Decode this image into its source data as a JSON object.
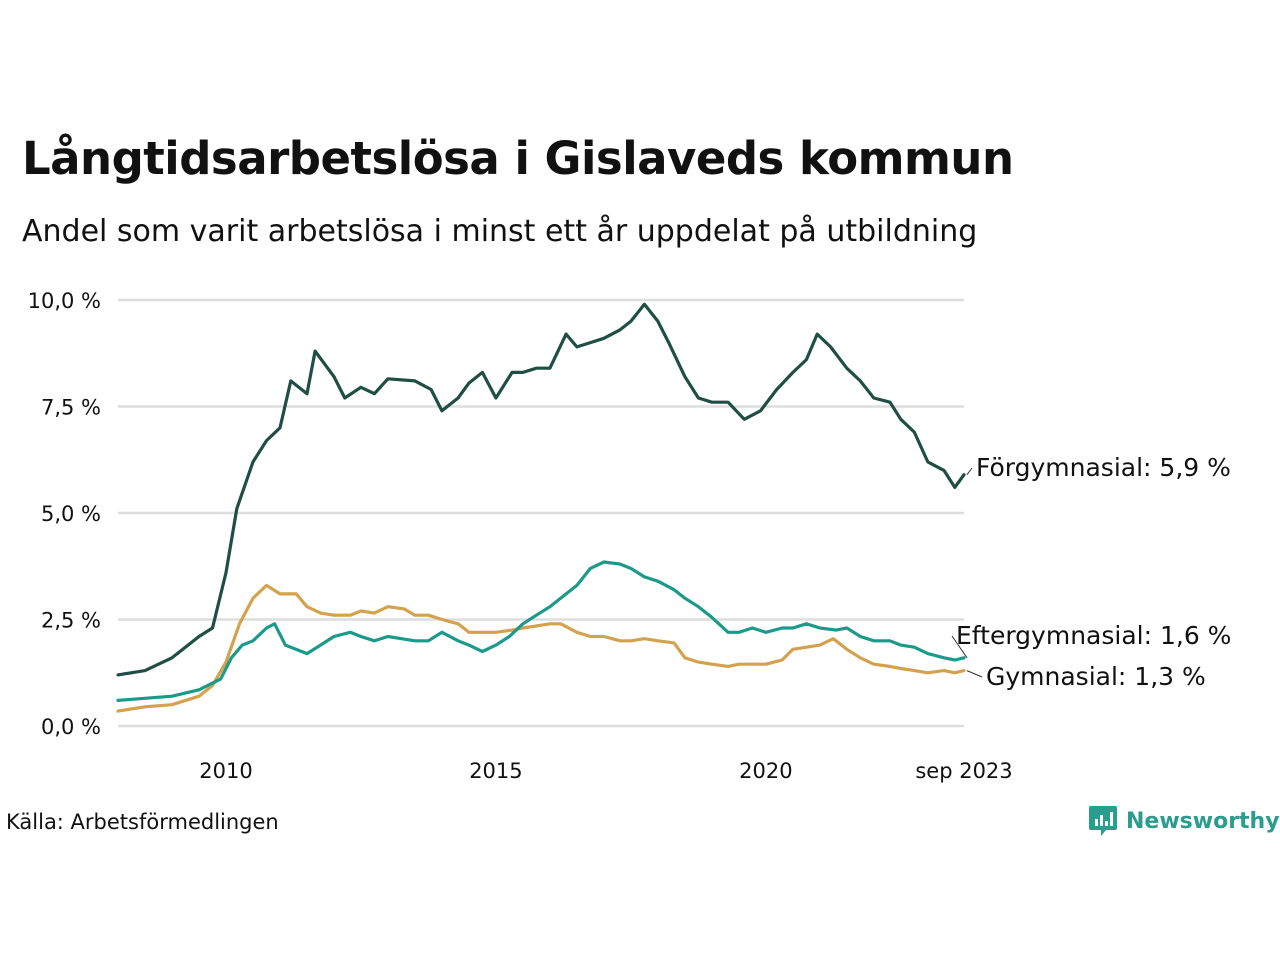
{
  "title": "Långtidsarbetslösa i Gislaveds kommun",
  "subtitle": "Andel som varit arbetslösa i minst ett år uppdelat på utbildning",
  "source": "Källa: Arbetsförmedlingen",
  "brand": "Newsworthy",
  "colors": {
    "forgymnasial": "#1f4e45",
    "eftergymnasial": "#1b9a8a",
    "gymnasial": "#d4a24c",
    "grid": "#dddddd",
    "brand": "#2a9d8f"
  },
  "chart_data": {
    "type": "line",
    "xlim": [
      2008.0,
      2023.67
    ],
    "ylim": [
      0,
      10
    ],
    "y_ticks": [
      {
        "value": 0,
        "label": "0,0 %"
      },
      {
        "value": 2.5,
        "label": "2,5 %"
      },
      {
        "value": 5,
        "label": "5,0 %"
      },
      {
        "value": 7.5,
        "label": "7,5 %"
      },
      {
        "value": 10,
        "label": "10,0 %"
      }
    ],
    "x_ticks": [
      {
        "value": 2010,
        "label": "2010"
      },
      {
        "value": 2015,
        "label": "2015"
      },
      {
        "value": 2020,
        "label": "2020"
      },
      {
        "value": 2023.67,
        "label": "sep 2023"
      }
    ],
    "series": [
      {
        "key": "forgymnasial",
        "name": "Förgymnasial",
        "end_label": "Förgymnasial: 5,9 %",
        "points": [
          [
            2008.0,
            1.2
          ],
          [
            2008.5,
            1.3
          ],
          [
            2009.0,
            1.6
          ],
          [
            2009.5,
            2.1
          ],
          [
            2009.75,
            2.3
          ],
          [
            2010.0,
            3.6
          ],
          [
            2010.2,
            5.1
          ],
          [
            2010.5,
            6.2
          ],
          [
            2010.75,
            6.7
          ],
          [
            2011.0,
            7.0
          ],
          [
            2011.2,
            8.1
          ],
          [
            2011.5,
            7.8
          ],
          [
            2011.65,
            8.8
          ],
          [
            2012.0,
            8.2
          ],
          [
            2012.2,
            7.7
          ],
          [
            2012.5,
            7.95
          ],
          [
            2012.75,
            7.8
          ],
          [
            2013.0,
            8.15
          ],
          [
            2013.5,
            8.1
          ],
          [
            2013.8,
            7.9
          ],
          [
            2014.0,
            7.4
          ],
          [
            2014.3,
            7.7
          ],
          [
            2014.5,
            8.05
          ],
          [
            2014.75,
            8.3
          ],
          [
            2015.0,
            7.7
          ],
          [
            2015.3,
            8.3
          ],
          [
            2015.5,
            8.3
          ],
          [
            2015.75,
            8.4
          ],
          [
            2016.0,
            8.4
          ],
          [
            2016.3,
            9.2
          ],
          [
            2016.5,
            8.9
          ],
          [
            2016.75,
            9.0
          ],
          [
            2017.0,
            9.1
          ],
          [
            2017.3,
            9.3
          ],
          [
            2017.5,
            9.5
          ],
          [
            2017.75,
            9.9
          ],
          [
            2018.0,
            9.5
          ],
          [
            2018.2,
            9.0
          ],
          [
            2018.5,
            8.2
          ],
          [
            2018.75,
            7.7
          ],
          [
            2019.0,
            7.6
          ],
          [
            2019.3,
            7.6
          ],
          [
            2019.6,
            7.2
          ],
          [
            2019.9,
            7.4
          ],
          [
            2020.2,
            7.9
          ],
          [
            2020.5,
            8.3
          ],
          [
            2020.75,
            8.6
          ],
          [
            2020.95,
            9.2
          ],
          [
            2021.2,
            8.9
          ],
          [
            2021.5,
            8.4
          ],
          [
            2021.75,
            8.1
          ],
          [
            2022.0,
            7.7
          ],
          [
            2022.3,
            7.6
          ],
          [
            2022.5,
            7.2
          ],
          [
            2022.75,
            6.9
          ],
          [
            2023.0,
            6.2
          ],
          [
            2023.3,
            6.0
          ],
          [
            2023.5,
            5.6
          ],
          [
            2023.67,
            5.9
          ]
        ]
      },
      {
        "key": "eftergymnasial",
        "name": "Eftergymnasial",
        "end_label": "Eftergymnasial: 1,6 %",
        "points": [
          [
            2008.0,
            0.6
          ],
          [
            2008.5,
            0.65
          ],
          [
            2009.0,
            0.7
          ],
          [
            2009.5,
            0.85
          ],
          [
            2009.9,
            1.1
          ],
          [
            2010.1,
            1.6
          ],
          [
            2010.3,
            1.9
          ],
          [
            2010.5,
            2.0
          ],
          [
            2010.75,
            2.3
          ],
          [
            2010.9,
            2.4
          ],
          [
            2011.1,
            1.9
          ],
          [
            2011.5,
            1.7
          ],
          [
            2011.75,
            1.9
          ],
          [
            2012.0,
            2.1
          ],
          [
            2012.3,
            2.2
          ],
          [
            2012.5,
            2.1
          ],
          [
            2012.75,
            2.0
          ],
          [
            2013.0,
            2.1
          ],
          [
            2013.5,
            2.0
          ],
          [
            2013.75,
            2.0
          ],
          [
            2014.0,
            2.2
          ],
          [
            2014.3,
            2.0
          ],
          [
            2014.5,
            1.9
          ],
          [
            2014.75,
            1.75
          ],
          [
            2015.0,
            1.9
          ],
          [
            2015.25,
            2.1
          ],
          [
            2015.5,
            2.4
          ],
          [
            2015.75,
            2.6
          ],
          [
            2016.0,
            2.8
          ],
          [
            2016.3,
            3.1
          ],
          [
            2016.5,
            3.3
          ],
          [
            2016.75,
            3.7
          ],
          [
            2017.0,
            3.85
          ],
          [
            2017.3,
            3.8
          ],
          [
            2017.5,
            3.7
          ],
          [
            2017.75,
            3.5
          ],
          [
            2018.0,
            3.4
          ],
          [
            2018.3,
            3.2
          ],
          [
            2018.5,
            3.0
          ],
          [
            2018.75,
            2.8
          ],
          [
            2019.0,
            2.55
          ],
          [
            2019.3,
            2.2
          ],
          [
            2019.5,
            2.2
          ],
          [
            2019.75,
            2.3
          ],
          [
            2020.0,
            2.2
          ],
          [
            2020.3,
            2.3
          ],
          [
            2020.5,
            2.3
          ],
          [
            2020.75,
            2.4
          ],
          [
            2021.0,
            2.3
          ],
          [
            2021.3,
            2.25
          ],
          [
            2021.5,
            2.3
          ],
          [
            2021.75,
            2.1
          ],
          [
            2022.0,
            2.0
          ],
          [
            2022.3,
            2.0
          ],
          [
            2022.5,
            1.9
          ],
          [
            2022.75,
            1.85
          ],
          [
            2023.0,
            1.7
          ],
          [
            2023.3,
            1.6
          ],
          [
            2023.5,
            1.55
          ],
          [
            2023.67,
            1.6
          ]
        ]
      },
      {
        "key": "gymnasial",
        "name": "Gymnasial",
        "end_label": "Gymnasial: 1,3 %",
        "points": [
          [
            2008.0,
            0.35
          ],
          [
            2008.5,
            0.45
          ],
          [
            2009.0,
            0.5
          ],
          [
            2009.5,
            0.7
          ],
          [
            2009.75,
            0.95
          ],
          [
            2010.0,
            1.5
          ],
          [
            2010.25,
            2.4
          ],
          [
            2010.5,
            3.0
          ],
          [
            2010.75,
            3.3
          ],
          [
            2011.0,
            3.1
          ],
          [
            2011.3,
            3.1
          ],
          [
            2011.5,
            2.8
          ],
          [
            2011.75,
            2.65
          ],
          [
            2012.0,
            2.6
          ],
          [
            2012.3,
            2.6
          ],
          [
            2012.5,
            2.7
          ],
          [
            2012.75,
            2.65
          ],
          [
            2013.0,
            2.8
          ],
          [
            2013.3,
            2.75
          ],
          [
            2013.5,
            2.6
          ],
          [
            2013.75,
            2.6
          ],
          [
            2014.0,
            2.5
          ],
          [
            2014.3,
            2.4
          ],
          [
            2014.5,
            2.2
          ],
          [
            2014.75,
            2.2
          ],
          [
            2015.0,
            2.2
          ],
          [
            2015.3,
            2.25
          ],
          [
            2015.5,
            2.3
          ],
          [
            2015.75,
            2.35
          ],
          [
            2016.0,
            2.4
          ],
          [
            2016.2,
            2.4
          ],
          [
            2016.5,
            2.2
          ],
          [
            2016.75,
            2.1
          ],
          [
            2017.0,
            2.1
          ],
          [
            2017.3,
            2.0
          ],
          [
            2017.5,
            2.0
          ],
          [
            2017.75,
            2.05
          ],
          [
            2018.0,
            2.0
          ],
          [
            2018.3,
            1.95
          ],
          [
            2018.5,
            1.6
          ],
          [
            2018.75,
            1.5
          ],
          [
            2019.0,
            1.45
          ],
          [
            2019.3,
            1.4
          ],
          [
            2019.5,
            1.45
          ],
          [
            2019.75,
            1.45
          ],
          [
            2020.0,
            1.45
          ],
          [
            2020.3,
            1.55
          ],
          [
            2020.5,
            1.8
          ],
          [
            2020.75,
            1.85
          ],
          [
            2021.0,
            1.9
          ],
          [
            2021.25,
            2.05
          ],
          [
            2021.5,
            1.8
          ],
          [
            2021.75,
            1.6
          ],
          [
            2022.0,
            1.45
          ],
          [
            2022.3,
            1.4
          ],
          [
            2022.5,
            1.35
          ],
          [
            2022.75,
            1.3
          ],
          [
            2023.0,
            1.25
          ],
          [
            2023.3,
            1.3
          ],
          [
            2023.5,
            1.25
          ],
          [
            2023.67,
            1.3
          ]
        ]
      }
    ]
  }
}
